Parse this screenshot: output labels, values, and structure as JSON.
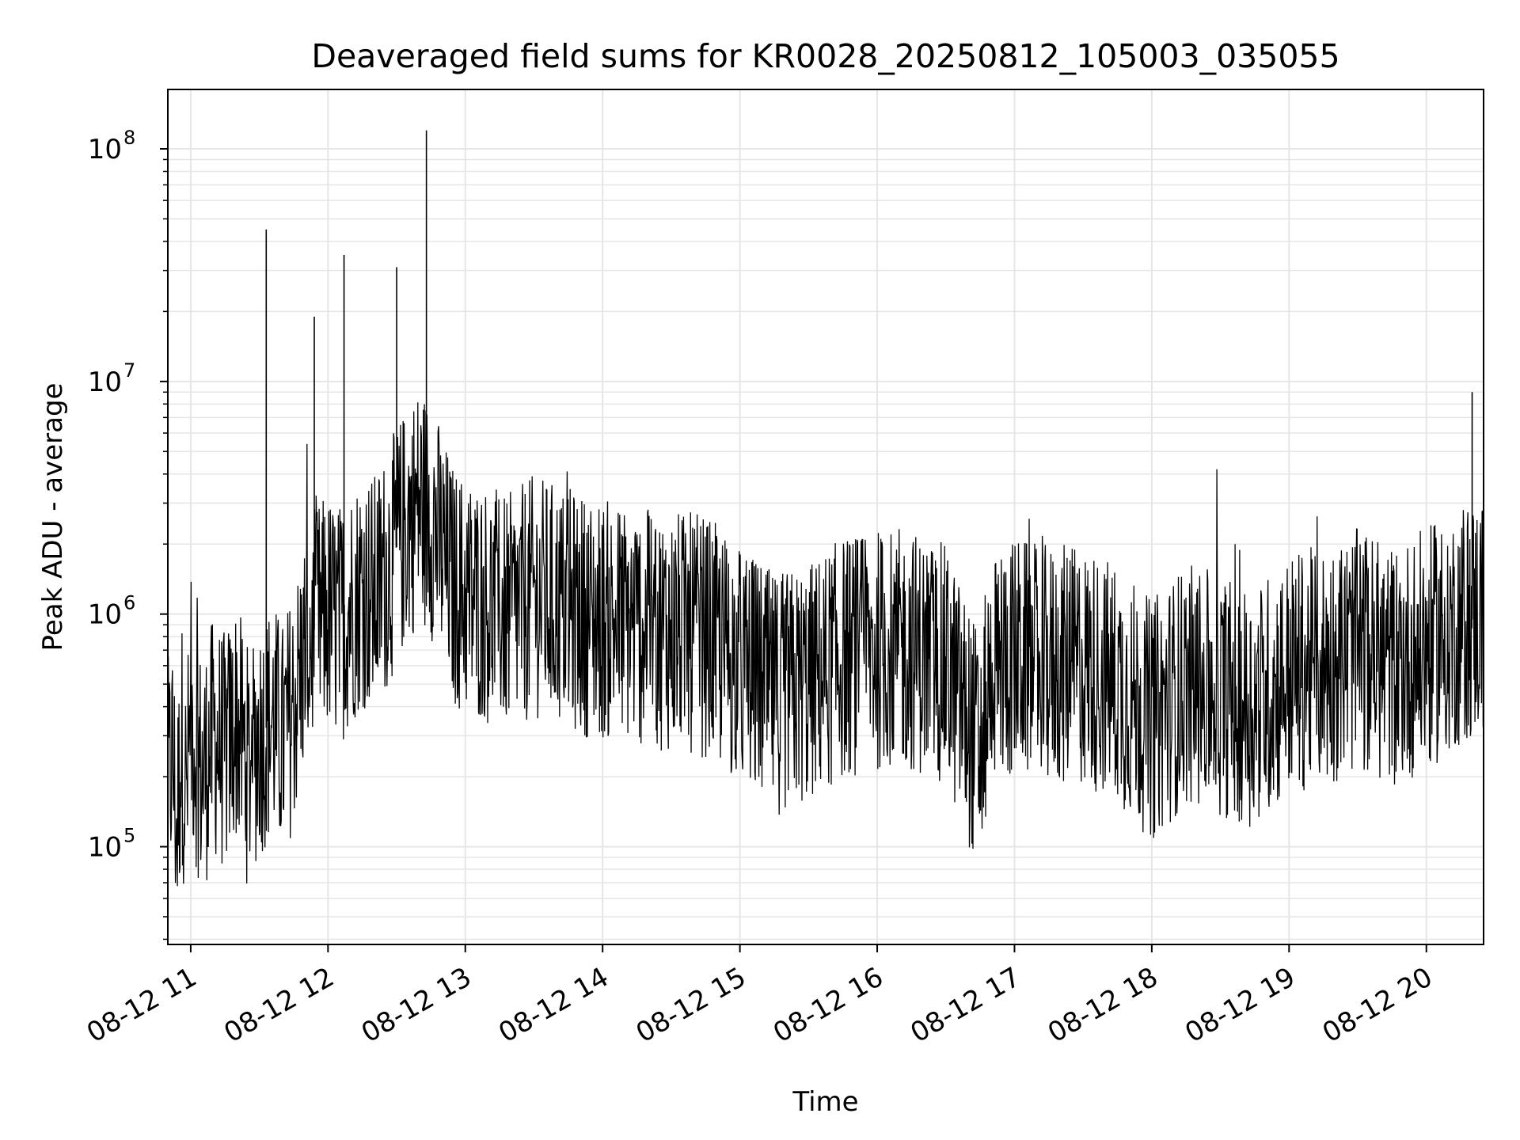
{
  "chart_data": {
    "type": "line",
    "title": "Deaveraged field sums for KR0028_20250812_105003_035055",
    "xlabel": "Time",
    "ylabel": "Peak ADU - average",
    "y_scale": "log",
    "grid": true,
    "legend": "none",
    "line_color": "#000000",
    "grid_color": "#e6e6e6",
    "xlim": [
      "2025-08-12 10:50",
      "2025-08-12 20:25"
    ],
    "ylim": [
      38000,
      180000000
    ],
    "x_ticks": [
      {
        "value": "2025-08-12 11:00",
        "label": "08-12 11"
      },
      {
        "value": "2025-08-12 12:00",
        "label": "08-12 12"
      },
      {
        "value": "2025-08-12 13:00",
        "label": "08-12 13"
      },
      {
        "value": "2025-08-12 14:00",
        "label": "08-12 14"
      },
      {
        "value": "2025-08-12 15:00",
        "label": "08-12 15"
      },
      {
        "value": "2025-08-12 16:00",
        "label": "08-12 16"
      },
      {
        "value": "2025-08-12 17:00",
        "label": "08-12 17"
      },
      {
        "value": "2025-08-12 18:00",
        "label": "08-12 18"
      },
      {
        "value": "2025-08-12 19:00",
        "label": "08-12 19"
      },
      {
        "value": "2025-08-12 20:00",
        "label": "08-12 20"
      }
    ],
    "y_ticks": [
      {
        "value": 100000,
        "label": "10^5"
      },
      {
        "value": 1000000,
        "label": "10^6"
      },
      {
        "value": 10000000,
        "label": "10^7"
      },
      {
        "value": 100000000,
        "label": "10^8"
      }
    ],
    "series": [
      {
        "values": [
          [
            "2025-08-12 10:50",
            180000
          ],
          [
            "2025-08-12 10:52",
            250000
          ],
          [
            "2025-08-12 10:54",
            120000
          ],
          [
            "2025-08-12 10:56",
            300000
          ],
          [
            "2025-08-12 10:58",
            160000
          ],
          [
            "2025-08-12 11:00",
            350000
          ],
          [
            "2025-08-12 11:05",
            200000
          ],
          [
            "2025-08-12 11:10",
            300000
          ],
          [
            "2025-08-12 11:15",
            250000
          ],
          [
            "2025-08-12 11:20",
            350000
          ],
          [
            "2025-08-12 11:25",
            220000
          ],
          [
            "2025-08-12 11:30",
            300000
          ],
          [
            "2025-08-12 11:33",
            45000000
          ],
          [
            "2025-08-12 11:36",
            350000
          ],
          [
            "2025-08-12 11:40",
            280000
          ],
          [
            "2025-08-12 11:45",
            400000
          ],
          [
            "2025-08-12 11:50",
            700000
          ],
          [
            "2025-08-12 11:55",
            900000
          ],
          [
            "2025-08-12 11:54",
            19000000
          ],
          [
            "2025-08-12 12:00",
            1000000
          ],
          [
            "2025-08-12 12:05",
            900000
          ],
          [
            "2025-08-12 12:07",
            35000000
          ],
          [
            "2025-08-12 12:10",
            1100000
          ],
          [
            "2025-08-12 12:15",
            1300000
          ],
          [
            "2025-08-12 12:20",
            1200000
          ],
          [
            "2025-08-12 12:25",
            1500000
          ],
          [
            "2025-08-12 12:30",
            31000000
          ],
          [
            "2025-08-12 12:35",
            2500000
          ],
          [
            "2025-08-12 12:40",
            3000000
          ],
          [
            "2025-08-12 12:43",
            120000000
          ],
          [
            "2025-08-12 12:46",
            2500000
          ],
          [
            "2025-08-12 12:50",
            1800000
          ],
          [
            "2025-08-12 12:55",
            1300000
          ],
          [
            "2025-08-12 13:00",
            1200000
          ],
          [
            "2025-08-12 13:10",
            1100000
          ],
          [
            "2025-08-12 13:20",
            1000000
          ],
          [
            "2025-08-12 13:30",
            1200000
          ],
          [
            "2025-08-12 13:40",
            1100000
          ],
          [
            "2025-08-12 13:50",
            1000000
          ],
          [
            "2025-08-12 14:00",
            950000
          ],
          [
            "2025-08-12 14:15",
            900000
          ],
          [
            "2025-08-12 14:30",
            850000
          ],
          [
            "2025-08-12 14:45",
            800000
          ],
          [
            "2025-08-12 15:00",
            600000
          ],
          [
            "2025-08-12 15:15",
            450000
          ],
          [
            "2025-08-12 15:30",
            500000
          ],
          [
            "2025-08-12 15:45",
            650000
          ],
          [
            "2025-08-12 16:00",
            700000
          ],
          [
            "2025-08-12 16:15",
            700000
          ],
          [
            "2025-08-12 16:30",
            600000
          ],
          [
            "2025-08-12 16:45",
            250000
          ],
          [
            "2025-08-12 16:50",
            600000
          ],
          [
            "2025-08-12 17:00",
            650000
          ],
          [
            "2025-08-12 17:15",
            600000
          ],
          [
            "2025-08-12 17:30",
            600000
          ],
          [
            "2025-08-12 17:45",
            500000
          ],
          [
            "2025-08-12 18:00",
            350000
          ],
          [
            "2025-08-12 18:15",
            500000
          ],
          [
            "2025-08-12 18:30",
            450000
          ],
          [
            "2025-08-12 18:45",
            400000
          ],
          [
            "2025-08-12 19:00",
            550000
          ],
          [
            "2025-08-12 19:15",
            600000
          ],
          [
            "2025-08-12 19:30",
            700000
          ],
          [
            "2025-08-12 19:45",
            600000
          ],
          [
            "2025-08-12 20:00",
            700000
          ],
          [
            "2025-08-12 20:15",
            900000
          ],
          [
            "2025-08-12 20:20",
            9000000
          ],
          [
            "2025-08-12 20:25",
            1000000
          ]
        ]
      }
    ]
  }
}
